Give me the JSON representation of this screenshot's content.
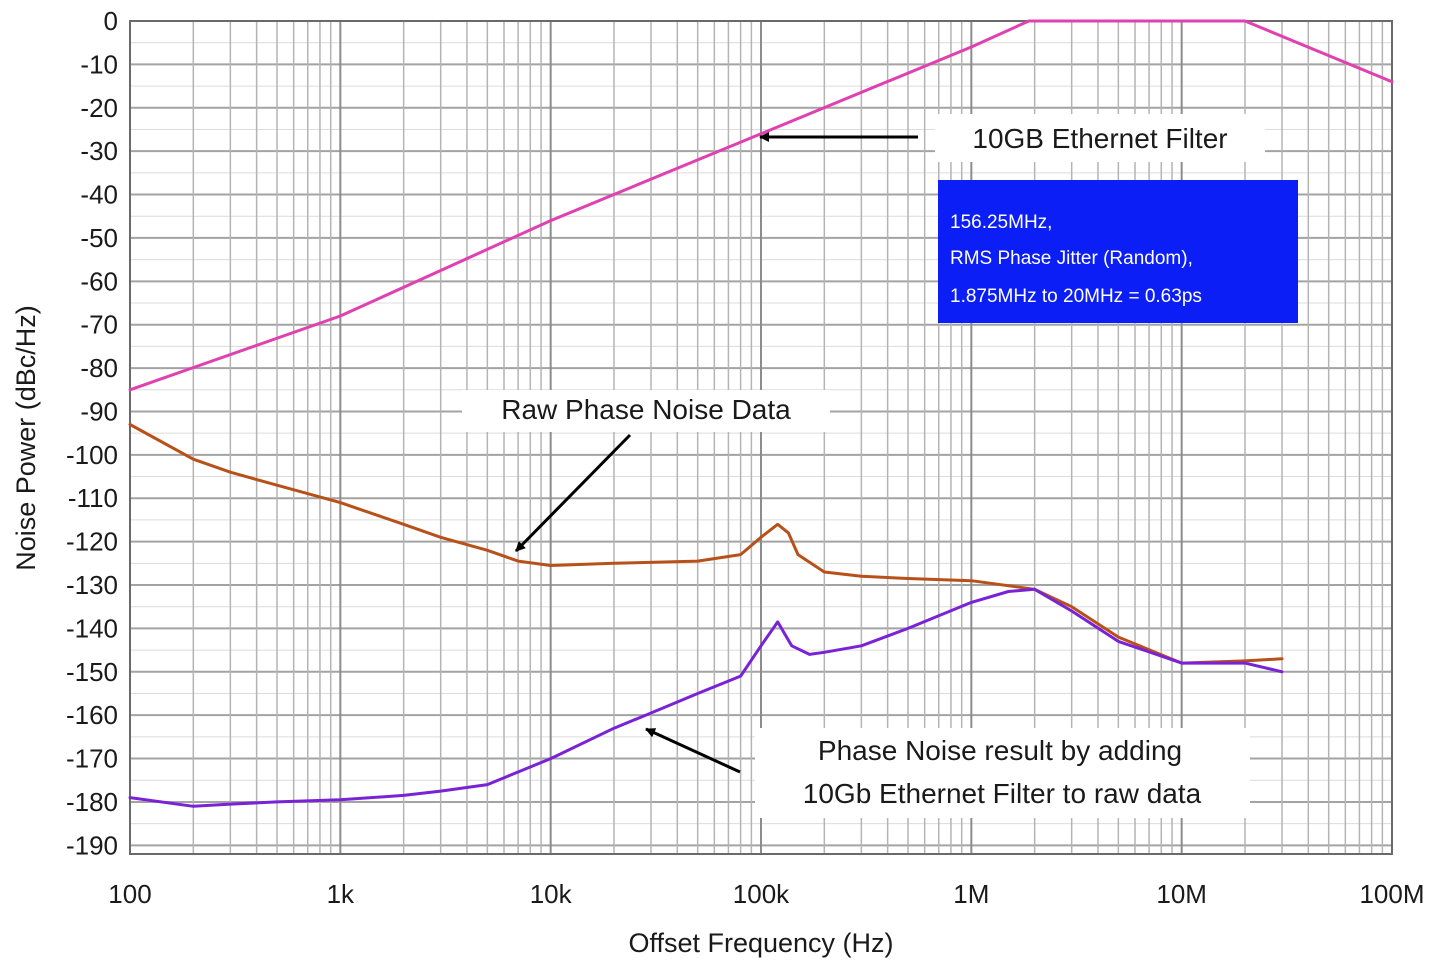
{
  "chart_data": {
    "type": "line",
    "xlabel": "Offset Frequency (Hz)",
    "ylabel": "Noise Power (dBc/Hz)",
    "xscale": "log",
    "xlim": [
      100,
      100000000
    ],
    "ylim": [
      -192,
      0
    ],
    "x_ticks": [
      100,
      1000,
      10000,
      100000,
      1000000,
      10000000,
      100000000
    ],
    "x_tick_labels": [
      "100",
      "1k",
      "10k",
      "100k",
      "1M",
      "10M",
      "100M"
    ],
    "y_ticks": [
      0,
      -10,
      -20,
      -30,
      -40,
      -50,
      -60,
      -70,
      -80,
      -90,
      -100,
      -110,
      -120,
      -130,
      -140,
      -150,
      -160,
      -170,
      -180,
      -190
    ],
    "y_tick_labels": [
      "0",
      "-10",
      "-20",
      "-30",
      "-40",
      "-50",
      "-60",
      "-70",
      "-80",
      "-90",
      "-100",
      "-110",
      "-120",
      "-130",
      "-140",
      "-150",
      "-160",
      "-170",
      "-180",
      "-190"
    ],
    "grid": "major and minor (log decades)",
    "series": [
      {
        "key": "filter",
        "color": "#e040b0",
        "x": [
          100,
          1000,
          10000,
          100000,
          1000000,
          1875000,
          20000000,
          100000000
        ],
        "y": [
          -85,
          -68,
          -46,
          -26,
          -6,
          0,
          0,
          -14
        ]
      },
      {
        "key": "raw",
        "color": "#b8501a",
        "x": [
          100,
          200,
          300,
          500,
          1000,
          2000,
          3000,
          5000,
          7000,
          10000,
          20000,
          50000,
          80000,
          100000,
          120000,
          135000,
          150000,
          200000,
          300000,
          500000,
          1000000,
          2000000,
          3000000,
          5000000,
          10000000,
          20000000,
          30000000
        ],
        "y": [
          -93,
          -101,
          -104,
          -107,
          -111,
          -116,
          -119,
          -122,
          -124.5,
          -125.5,
          -125,
          -124.5,
          -123,
          -119,
          -116,
          -118,
          -123,
          -127,
          -128,
          -128.5,
          -129,
          -131,
          -135,
          -142,
          -148,
          -147.5,
          -147
        ]
      },
      {
        "key": "result",
        "color": "#7a22d6",
        "x": [
          100,
          200,
          300,
          500,
          1000,
          2000,
          3000,
          5000,
          10000,
          20000,
          30000,
          50000,
          80000,
          100000,
          120000,
          140000,
          170000,
          200000,
          300000,
          500000,
          1000000,
          1500000,
          2000000,
          3000000,
          5000000,
          10000000,
          20000000,
          30000000
        ],
        "y": [
          -179,
          -181,
          -180.5,
          -180,
          -179.5,
          -178.5,
          -177.5,
          -176,
          -170,
          -163,
          -159.5,
          -155,
          -151,
          -144,
          -138.5,
          -144,
          -146,
          -145.5,
          -144,
          -140,
          -134,
          -131.5,
          -131,
          -136,
          -143,
          -148,
          -148,
          -150
        ]
      }
    ],
    "annotations": {
      "filter_label": "10GB Ethernet Filter",
      "raw_label": "Raw Phase Noise Data",
      "result_line1": "Phase Noise result by adding",
      "result_line2": "10Gb Ethernet Filter to raw data"
    },
    "info_box": {
      "color": "#0a1ef5",
      "line1": "156.25MHz,",
      "line2": "RMS Phase Jitter (Random),",
      "line3": "1.875MHz to 20MHz = 0.63ps"
    }
  }
}
